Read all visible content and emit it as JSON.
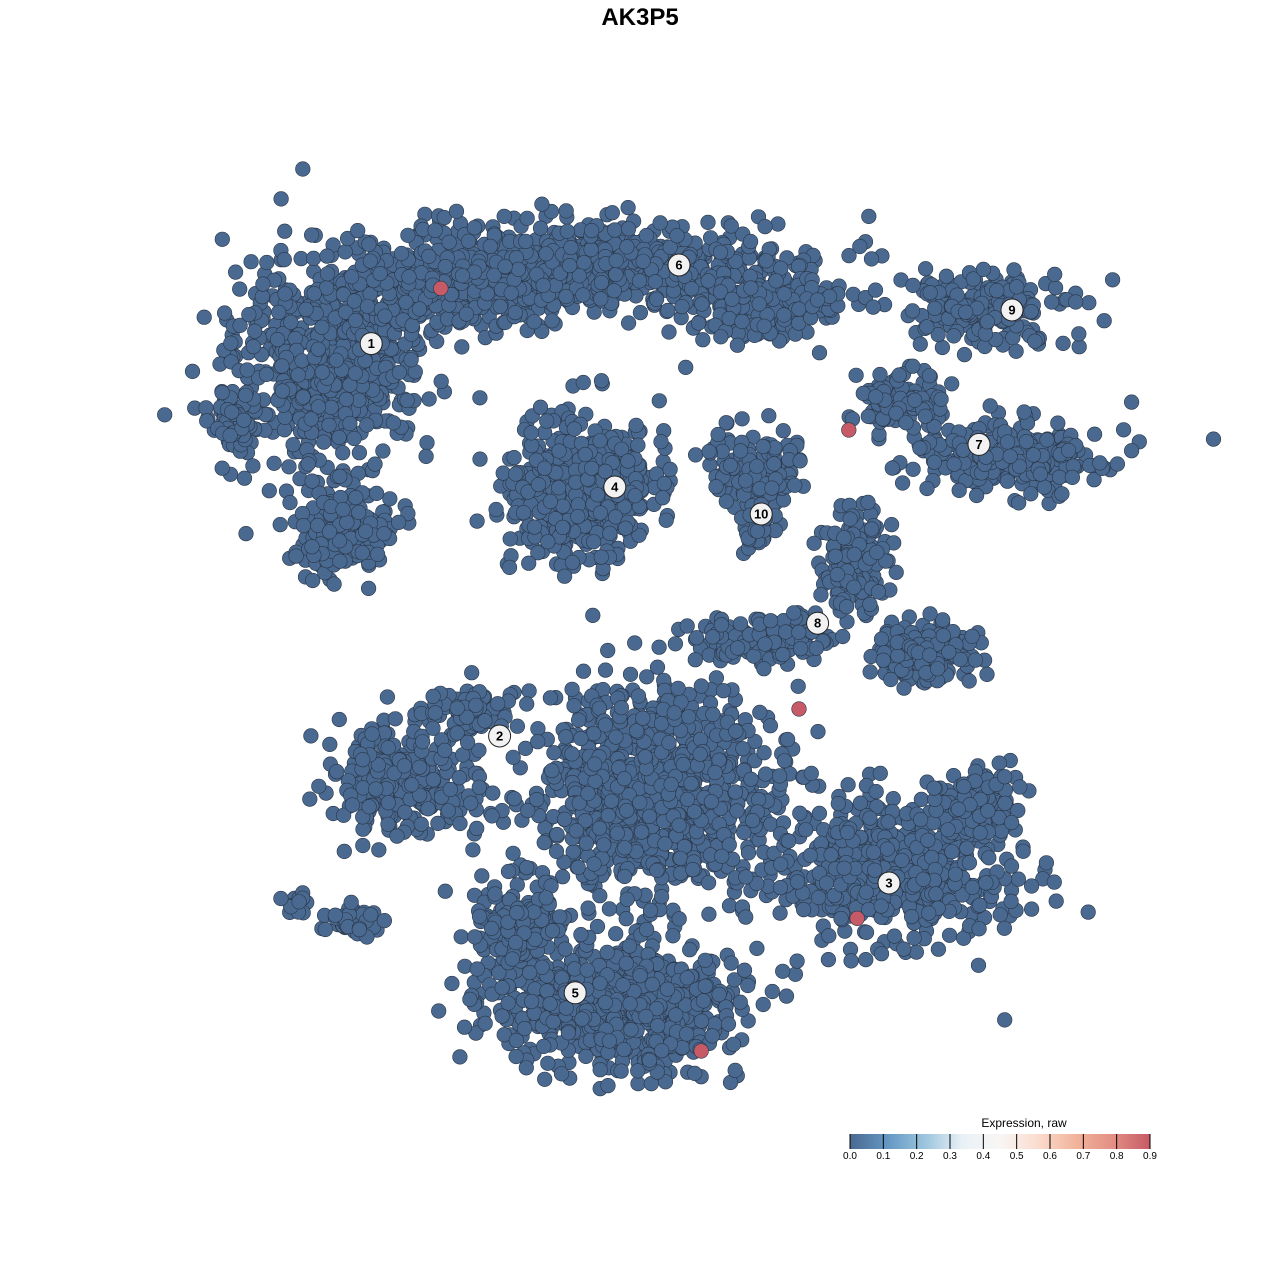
{
  "chart_data": {
    "type": "scatter",
    "title": "AK3P5",
    "xlabel": "",
    "ylabel": "",
    "grid": false,
    "point_color_default": "#4a6990",
    "point_color_high": "#c65a66",
    "point_outline": "#2a3748",
    "clusters": [
      {
        "label": "1",
        "center": [
          -22.4,
          24.7
        ]
      },
      {
        "label": "2",
        "center": [
          -11.7,
          -8.0
        ]
      },
      {
        "label": "3",
        "center": [
          20.75,
          -20.25
        ]
      },
      {
        "label": "4",
        "center": [
          -2.1,
          12.75
        ]
      },
      {
        "label": "5",
        "center": [
          -5.4,
          -29.4
        ]
      },
      {
        "label": "6",
        "center": [
          3.25,
          31.25
        ]
      },
      {
        "label": "7",
        "center": [
          28.25,
          16.3
        ]
      },
      {
        "label": "8",
        "center": [
          14.8,
          1.4
        ]
      },
      {
        "label": "9",
        "center": [
          31.0,
          27.5
        ]
      },
      {
        "label": "10",
        "center": [
          10.1,
          10.5
        ]
      }
    ],
    "highlighted_points": [
      {
        "x": -16.6,
        "y": 29.3,
        "value": 0.9
      },
      {
        "x": 17.4,
        "y": 17.5,
        "value": 0.9
      },
      {
        "x": 13.25,
        "y": -5.75,
        "value": 0.9
      },
      {
        "x": 18.1,
        "y": -23.2,
        "value": 0.9
      },
      {
        "x": 5.1,
        "y": -34.25,
        "value": 0.9
      }
    ],
    "baseline_value": 0.0,
    "legend": {
      "title": "Expression, raw",
      "placement": "bottom-right",
      "range": [
        0.0,
        0.9
      ],
      "ticks": [
        "0.0",
        "0.1",
        "0.2",
        "0.3",
        "0.4",
        "0.5",
        "0.6",
        "0.7",
        "0.8",
        "0.9"
      ],
      "colors": [
        "#4a6990",
        "#6497c4",
        "#9cc5de",
        "#e9f1f6",
        "#f8f6f5",
        "#fbdccf",
        "#f2b49c",
        "#e38f84",
        "#c65a66"
      ]
    }
  }
}
